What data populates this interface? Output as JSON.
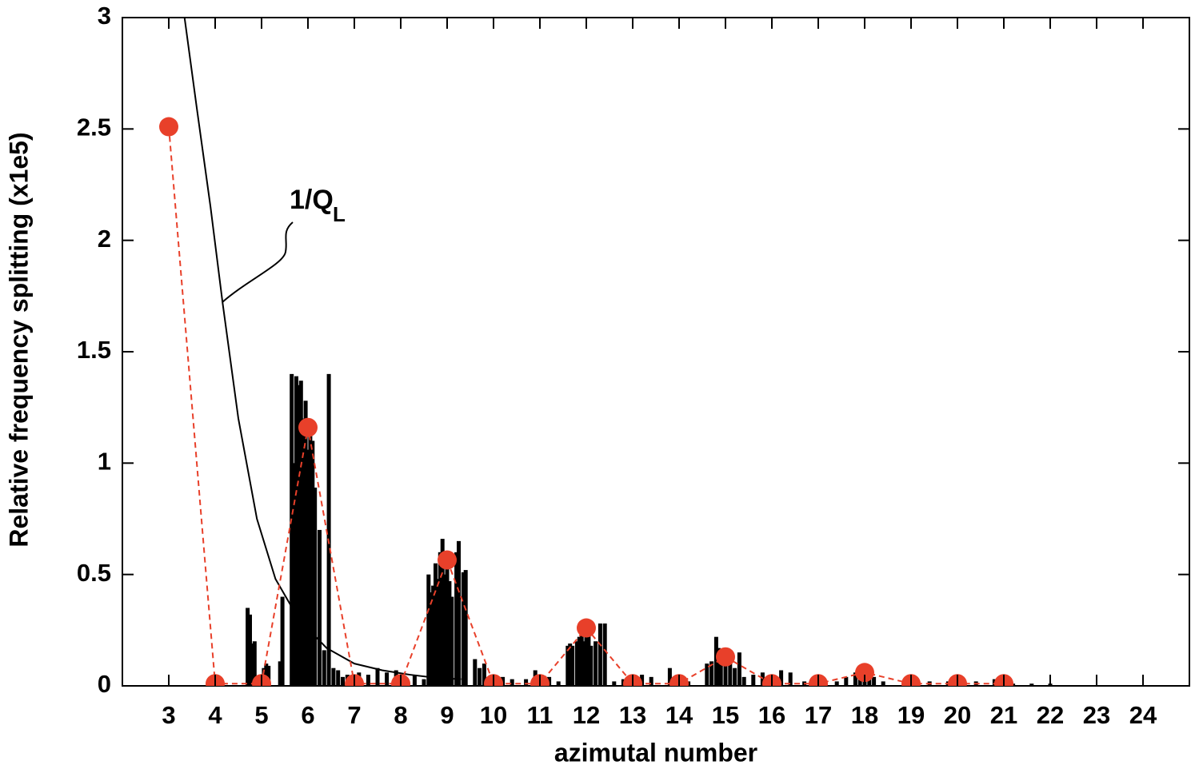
{
  "chart_data": {
    "type": "combo",
    "x_label": "azimutal number",
    "y_label": "Relative frequency splitting (x1e5)",
    "annotation": {
      "text": "1/Q",
      "subscript": "L"
    },
    "xlim": [
      2,
      25
    ],
    "xticks": [
      3,
      4,
      5,
      6,
      7,
      8,
      9,
      10,
      11,
      12,
      13,
      14,
      15,
      16,
      17,
      18,
      19,
      20,
      21,
      22,
      23,
      24
    ],
    "ylim": [
      0,
      3
    ],
    "yticks": [
      0,
      0.5,
      1,
      1.5,
      2,
      2.5,
      3
    ],
    "bars": {
      "color": "#000000",
      "x": [
        4.7,
        4.75,
        4.8,
        4.85,
        5.05,
        5.1,
        5.15,
        5.4,
        5.45,
        5.65,
        5.7,
        5.75,
        5.8,
        5.85,
        5.9,
        5.95,
        6.0,
        6.05,
        6.1,
        6.15,
        6.25,
        6.35,
        6.45,
        6.55,
        6.65,
        6.75,
        6.85,
        7.1,
        7.3,
        7.5,
        7.7,
        7.9,
        8.1,
        8.3,
        8.5,
        8.6,
        8.65,
        8.7,
        8.75,
        8.8,
        8.85,
        8.9,
        8.95,
        9.0,
        9.05,
        9.1,
        9.2,
        9.25,
        9.35,
        9.4,
        9.6,
        9.7,
        9.8,
        10.0,
        10.2,
        10.4,
        10.7,
        10.9,
        11.2,
        11.4,
        11.6,
        11.65,
        11.7,
        11.8,
        11.85,
        11.9,
        11.95,
        12.0,
        12.05,
        12.1,
        12.2,
        12.3,
        12.4,
        12.6,
        12.8,
        13.0,
        13.2,
        13.4,
        13.8,
        14.0,
        14.2,
        14.6,
        14.7,
        14.8,
        14.85,
        14.9,
        15.0,
        15.1,
        15.2,
        15.3,
        15.4,
        15.6,
        15.8,
        16.0,
        16.2,
        16.4,
        16.7,
        17.0,
        17.4,
        17.6,
        17.8,
        17.9,
        18.0,
        18.1,
        18.2,
        18.4,
        19.0,
        19.4,
        19.8,
        20.4,
        20.8,
        21.0,
        21.2,
        21.6,
        22.0
      ],
      "values": [
        0.35,
        0.32,
        0.19,
        0.2,
        0.08,
        0.1,
        0.09,
        0.11,
        0.4,
        1.4,
        1.0,
        1.39,
        1.35,
        1.37,
        1.2,
        1.28,
        1.06,
        1.15,
        1.1,
        0.89,
        0.7,
        0.16,
        1.4,
        0.08,
        0.07,
        0.04,
        0.05,
        0.06,
        0.05,
        0.08,
        0.06,
        0.07,
        0.04,
        0.05,
        0.03,
        0.5,
        0.42,
        0.45,
        0.55,
        0.48,
        0.6,
        0.66,
        0.5,
        0.56,
        0.47,
        0.4,
        0.6,
        0.65,
        0.51,
        0.52,
        0.12,
        0.08,
        0.1,
        0.05,
        0.04,
        0.03,
        0.03,
        0.07,
        0.04,
        0.02,
        0.18,
        0.19,
        0.18,
        0.2,
        0.22,
        0.27,
        0.2,
        0.28,
        0.24,
        0.18,
        0.2,
        0.28,
        0.28,
        0.02,
        0.03,
        0.04,
        0.05,
        0.04,
        0.08,
        0.04,
        0.02,
        0.1,
        0.11,
        0.22,
        0.17,
        0.14,
        0.12,
        0.1,
        0.08,
        0.15,
        0.04,
        0.05,
        0.06,
        0.05,
        0.07,
        0.06,
        0.02,
        0.02,
        0.02,
        0.04,
        0.06,
        0.07,
        0.08,
        0.06,
        0.04,
        0.02,
        0.02,
        0.02,
        0.02,
        0.02,
        0.03,
        0.02,
        0.01,
        0.01,
        0.01
      ]
    },
    "points": {
      "color": "#e8402a",
      "x": [
        3,
        4,
        5,
        6,
        7,
        8,
        9,
        10,
        11,
        12,
        13,
        14,
        15,
        16,
        17,
        18,
        19,
        20,
        21
      ],
      "values": [
        2.51,
        0.01,
        0.01,
        1.16,
        0.01,
        0.01,
        0.565,
        0.01,
        0.01,
        0.26,
        0.01,
        0.01,
        0.13,
        0.01,
        0.01,
        0.06,
        0.01,
        0.01,
        0.01
      ]
    },
    "curve": {
      "color": "#000000",
      "x": [
        3.34,
        3.6,
        3.9,
        4.16,
        4.5,
        4.9,
        5.3,
        5.8,
        6.4,
        7.0,
        7.6,
        8.2,
        8.8,
        9.3
      ],
      "values": [
        3,
        2.6,
        2.15,
        1.72,
        1.2,
        0.75,
        0.48,
        0.3,
        0.17,
        0.1,
        0.07,
        0.05,
        0.035,
        0.03
      ]
    }
  }
}
